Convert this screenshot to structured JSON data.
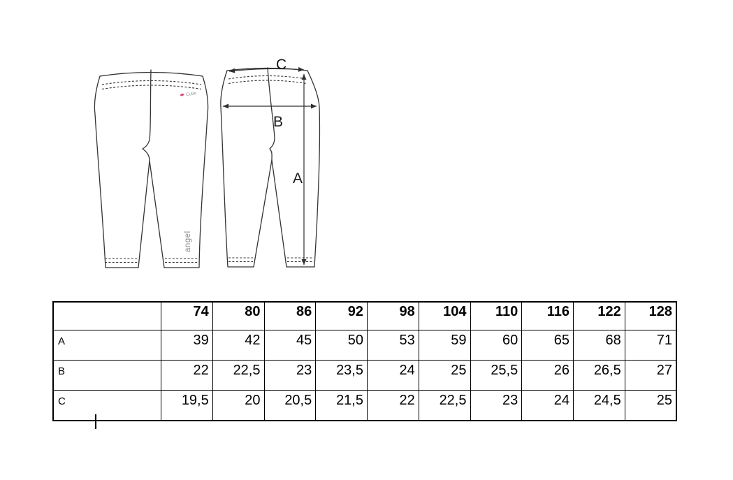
{
  "diagram": {
    "measure_labels": {
      "length": "A",
      "hip_width": "B",
      "waist_width": "C"
    },
    "front_view": {
      "waistband_logo_text": "Cutie",
      "leg_print_text": "angel"
    },
    "colors": {
      "line": "#333333",
      "arrow": "#2f2f2f",
      "logo_pink": "#d94f7e",
      "print_gray": "#8f8f8f"
    }
  },
  "size_table": {
    "corner_label": "",
    "sizes": [
      "74",
      "80",
      "86",
      "92",
      "98",
      "104",
      "110",
      "116",
      "122",
      "128"
    ],
    "rows": [
      {
        "label": "A",
        "values": [
          "39",
          "42",
          "45",
          "50",
          "53",
          "59",
          "60",
          "65",
          "68",
          "71"
        ]
      },
      {
        "label": "B",
        "values": [
          "22",
          "22,5",
          "23",
          "23,5",
          "24",
          "25",
          "25,5",
          "26",
          "26,5",
          "27"
        ]
      },
      {
        "label": "C",
        "values": [
          "19,5",
          "20",
          "20,5",
          "21,5",
          "22",
          "22,5",
          "23",
          "24",
          "24,5",
          "25"
        ]
      }
    ]
  },
  "chart_data": {
    "type": "table",
    "columns": [
      "",
      "74",
      "80",
      "86",
      "92",
      "98",
      "104",
      "110",
      "116",
      "122",
      "128"
    ],
    "rows": [
      [
        "A",
        "39",
        "42",
        "45",
        "50",
        "53",
        "59",
        "60",
        "65",
        "68",
        "71"
      ],
      [
        "B",
        "22",
        "22,5",
        "23",
        "23,5",
        "24",
        "25",
        "25,5",
        "26",
        "26,5",
        "27"
      ],
      [
        "C",
        "19,5",
        "20",
        "20,5",
        "21,5",
        "22",
        "22,5",
        "23",
        "24",
        "24,5",
        "25"
      ]
    ]
  }
}
